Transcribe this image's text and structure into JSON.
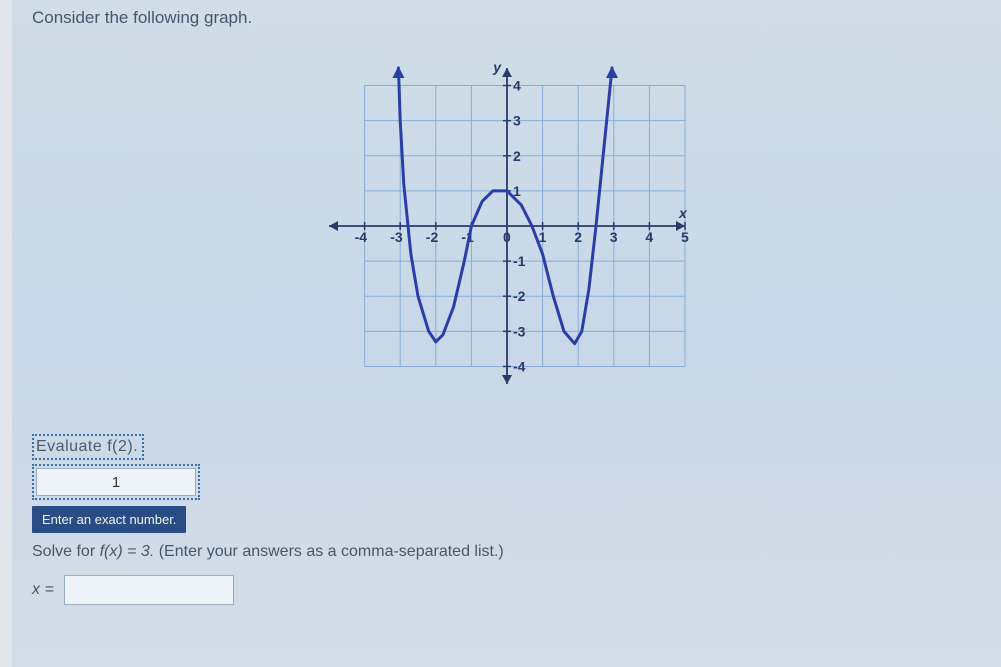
{
  "prompt": "Consider the following graph.",
  "graph": {
    "type": "line",
    "x_axis_label": "x",
    "y_axis_label": "y",
    "xlim": [
      -5,
      5
    ],
    "ylim": [
      -4.5,
      4.5
    ],
    "xtick_step": 1,
    "ytick_step": 1,
    "x_tick_labels": {
      "-4": "-4",
      "-3": "-3",
      "-2": "-2",
      "-1": "-1",
      "0": "0",
      "1": "1",
      "2": "2",
      "3": "3",
      "4": "4",
      "5": "5"
    },
    "y_tick_labels": {
      "4": "4",
      "3": "3",
      "2": "2",
      "1": "1",
      "-1": "-1",
      "-2": "-2",
      "-3": "-3",
      "-4": "-4"
    },
    "curve_color": "#2a3ea8",
    "curve_width": 3,
    "grid_color": "#7fa8d8",
    "axis_color": "#2a3a6a",
    "background_color": "transparent",
    "arrowheads": true,
    "curve_points": [
      [
        -3.05,
        4.5
      ],
      [
        -3.0,
        3.0
      ],
      [
        -2.9,
        1.2
      ],
      [
        -2.7,
        -0.8
      ],
      [
        -2.5,
        -2.0
      ],
      [
        -2.2,
        -3.0
      ],
      [
        -2.0,
        -3.3
      ],
      [
        -1.8,
        -3.1
      ],
      [
        -1.5,
        -2.3
      ],
      [
        -1.2,
        -1.0
      ],
      [
        -1.0,
        0.0
      ],
      [
        -0.7,
        0.7
      ],
      [
        -0.4,
        1.0
      ],
      [
        0.0,
        1.0
      ],
      [
        0.4,
        0.6
      ],
      [
        0.7,
        0.0
      ],
      [
        1.0,
        -0.8
      ],
      [
        1.3,
        -2.0
      ],
      [
        1.6,
        -3.0
      ],
      [
        1.9,
        -3.35
      ],
      [
        2.1,
        -3.0
      ],
      [
        2.3,
        -1.8
      ],
      [
        2.5,
        0.0
      ],
      [
        2.7,
        2.0
      ],
      [
        2.85,
        3.5
      ],
      [
        2.95,
        4.5
      ]
    ]
  },
  "question1": {
    "label": "Evaluate f(2).",
    "input_value": "1",
    "tooltip": "Enter an exact number."
  },
  "question2": {
    "prefix": "Solve for  ",
    "fx_expr": "f(x) = 3.",
    "hint": "  (Enter your answers as a comma-separated list.)",
    "x_label": "x =",
    "input_value": ""
  }
}
